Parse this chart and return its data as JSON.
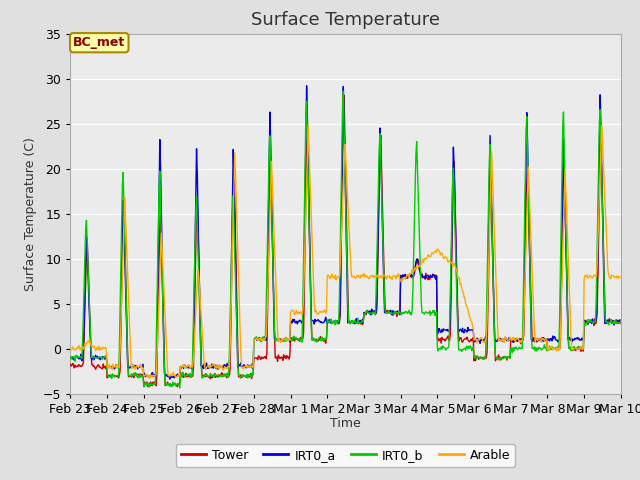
{
  "title": "Surface Temperature",
  "ylabel": "Surface Temperature (C)",
  "xlabel": "Time",
  "ylim": [
    -5,
    35
  ],
  "annotation": "BC_met",
  "legend_entries": [
    "Tower",
    "IRT0_a",
    "IRT0_b",
    "Arable"
  ],
  "colors": {
    "tower": "#cc0000",
    "irt0a": "#0000dd",
    "irt0b": "#00cc00",
    "arable": "#ffaa00"
  },
  "background_color": "#e0e0e0",
  "plot_bg_color": "#ebebeb",
  "grid_color": "#ffffff",
  "xtick_labels": [
    "Feb 23",
    "Feb 24",
    "Feb 25",
    "Feb 26",
    "Feb 27",
    "Feb 28",
    "Mar 1",
    "Mar 2",
    "Mar 3",
    "Mar 4",
    "Mar 5",
    "Mar 6",
    "Mar 7",
    "Mar 8",
    "Mar 9",
    "Mar 10"
  ],
  "ytick_vals": [
    -5,
    0,
    5,
    10,
    15,
    20,
    25,
    30,
    35
  ],
  "figsize": [
    6.4,
    4.8
  ],
  "dpi": 100
}
